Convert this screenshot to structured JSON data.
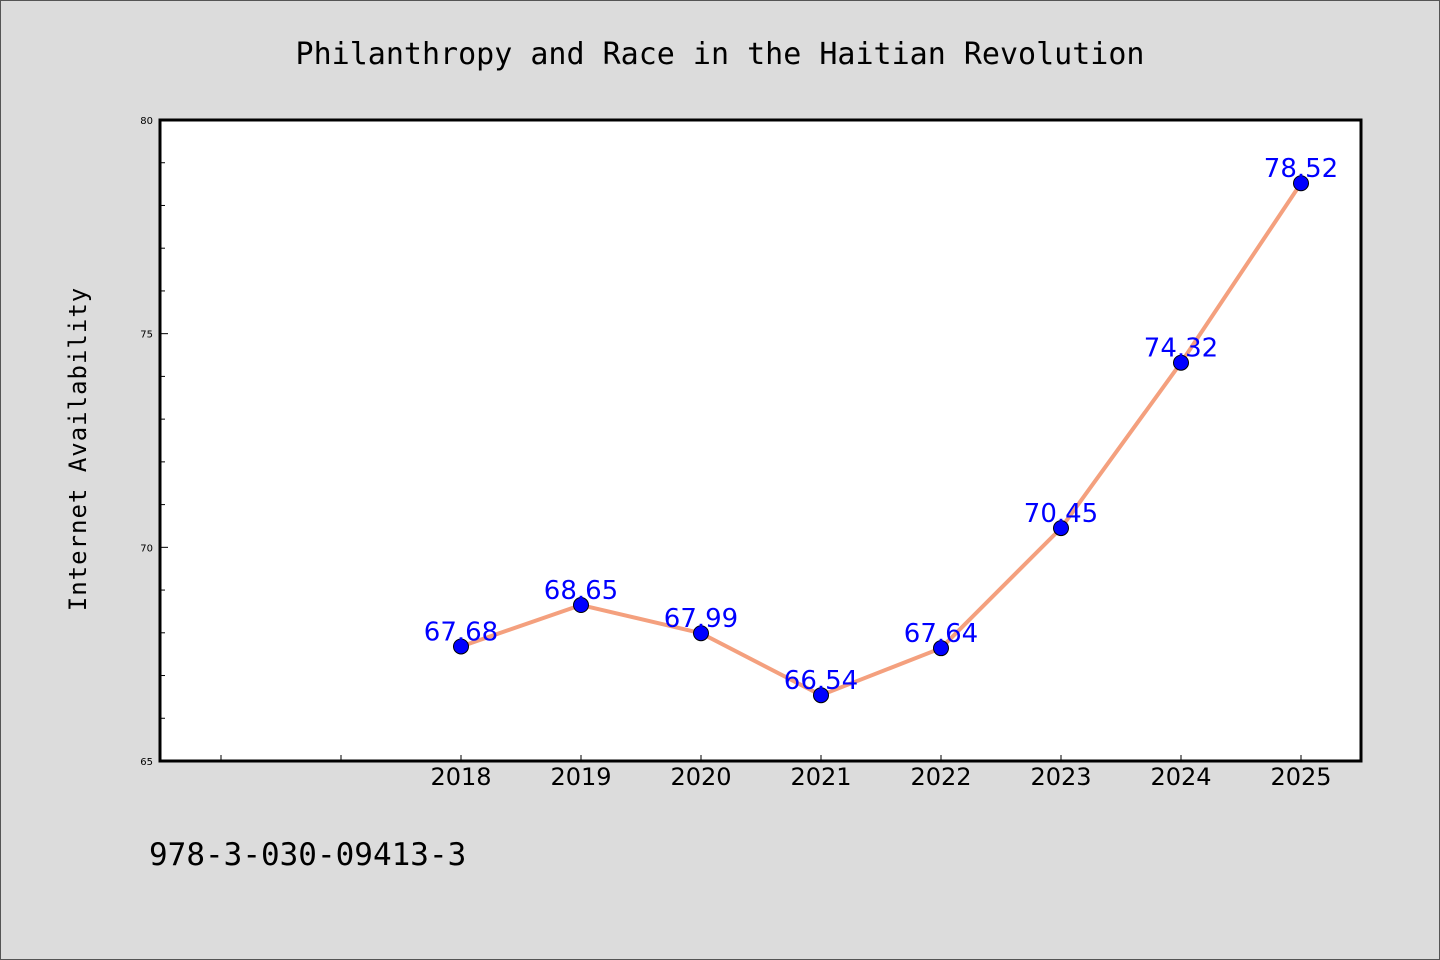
{
  "chart_data": {
    "type": "line",
    "title": "Philanthropy and Race in the Haitian Revolution",
    "xlabel": "",
    "ylabel": "Internet Availability",
    "categories": [
      "2018",
      "2019",
      "2020",
      "2021",
      "2022",
      "2023",
      "2024",
      "2025"
    ],
    "series": [
      {
        "values": [
          67.68,
          68.65,
          67.99,
          66.54,
          67.64,
          70.45,
          74.32,
          78.52
        ],
        "labels": [
          "67.68",
          "68.65",
          "67.99",
          "66.54",
          "67.64",
          "70.45",
          "74.32",
          "78.52"
        ],
        "line_color": "#f4a07e",
        "marker_color": "#0000ff"
      }
    ],
    "ylim": [
      65,
      80
    ],
    "yticks": [
      "65",
      "70",
      "75",
      "80"
    ],
    "grid": false,
    "legend": "none"
  },
  "footer": {
    "text": "978-3-030-09413-3"
  }
}
